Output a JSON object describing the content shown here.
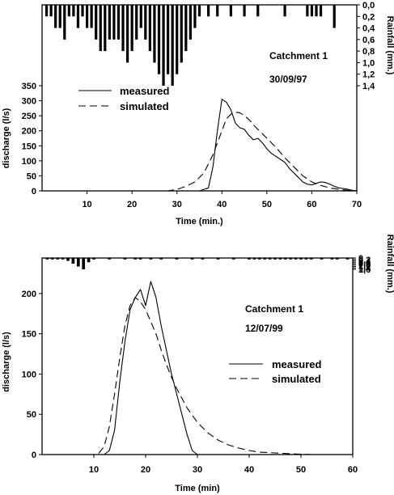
{
  "chart_data": [
    {
      "type": "line",
      "panel": "top",
      "annotation_catchment": "Catchment 1",
      "annotation_date": "30/09/97",
      "xlabel": "Time (min.)",
      "ylabel": "discharge (l/s)",
      "rain_label": "Rainfall (mm.)",
      "xlim": [
        0,
        70
      ],
      "ylim": [
        0,
        350
      ],
      "xticks": [
        10,
        20,
        30,
        40,
        50,
        60,
        70
      ],
      "yticks": [
        0,
        50,
        100,
        150,
        200,
        250,
        300,
        350
      ],
      "rain_ticks": [
        0,
        0.2,
        0.4,
        0.6,
        0.8,
        1.0,
        1.2,
        1.4
      ],
      "rain_tick_labels": [
        "0,0",
        "0,2",
        "0,4",
        "0,6",
        "0,8",
        "1,0",
        "1,2",
        "1,4"
      ],
      "rain_max": 1.4,
      "legend": {
        "placement": "top-left",
        "entries": [
          "measured",
          "simulated"
        ]
      },
      "series": [
        {
          "name": "measured",
          "style": "solid",
          "x": [
            0,
            35,
            37,
            38,
            39,
            40,
            41,
            42,
            43,
            44,
            45,
            46,
            47,
            48,
            49,
            50,
            51,
            52,
            53,
            54,
            55,
            56,
            57,
            58,
            59,
            60,
            61,
            62,
            63,
            64,
            65,
            66,
            67,
            68,
            69,
            70
          ],
          "y": [
            0,
            0,
            10,
            80,
            200,
            305,
            295,
            270,
            225,
            210,
            205,
            185,
            170,
            175,
            160,
            140,
            125,
            115,
            105,
            95,
            75,
            60,
            45,
            30,
            22,
            20,
            25,
            30,
            28,
            22,
            15,
            10,
            8,
            5,
            2,
            0
          ]
        },
        {
          "name": "simulated",
          "style": "dashed",
          "x": [
            0,
            28,
            30,
            32,
            34,
            36,
            38,
            40,
            41,
            42,
            43,
            44,
            45,
            46,
            47,
            48,
            49,
            50,
            52,
            54,
            56,
            58,
            60,
            62,
            64,
            66,
            68,
            70
          ],
          "y": [
            0,
            0,
            5,
            15,
            30,
            60,
            120,
            200,
            240,
            255,
            262,
            260,
            250,
            238,
            220,
            205,
            190,
            175,
            145,
            110,
            80,
            50,
            30,
            18,
            10,
            5,
            2,
            0
          ]
        }
      ],
      "rainfall": {
        "x": [
          1,
          2,
          3,
          4,
          5,
          6,
          7,
          8,
          9,
          10,
          11,
          12,
          13,
          14,
          15,
          16,
          17,
          18,
          19,
          20,
          21,
          22,
          23,
          24,
          25,
          26,
          27,
          28,
          29,
          30,
          31,
          32,
          33,
          34,
          35,
          37,
          39,
          42,
          45,
          48,
          54,
          59,
          60,
          61,
          62,
          65
        ],
        "values": [
          0.2,
          0.2,
          0.4,
          0.4,
          0.6,
          0.2,
          0.2,
          0.4,
          0.2,
          0.4,
          0.4,
          0.6,
          0.8,
          0.8,
          0.6,
          0.6,
          0.6,
          0.8,
          1.0,
          0.8,
          0.6,
          0.4,
          0.6,
          0.8,
          1.0,
          1.2,
          1.4,
          1.2,
          1.4,
          1.2,
          1.0,
          0.8,
          0.6,
          0.4,
          0.2,
          0.2,
          0.2,
          0.2,
          0.2,
          0.2,
          0.2,
          0.2,
          0.2,
          0.2,
          0.2,
          0.4
        ]
      }
    },
    {
      "type": "line",
      "panel": "bottom",
      "annotation_catchment": "Catchment 1",
      "annotation_date": "12/07/99",
      "xlabel": "Time (min)",
      "ylabel": "discharge (l/s)",
      "rain_label": "Rainfall (mm.)",
      "xlim": [
        0,
        60
      ],
      "ylim": [
        0,
        230
      ],
      "xticks": [
        10,
        20,
        30,
        40,
        50,
        60
      ],
      "yticks": [
        0,
        50,
        100,
        150,
        200
      ],
      "rain_ticks": [
        0,
        0.2,
        0.4,
        0.6,
        0.8,
        1.0,
        1.2,
        1.4,
        1.6
      ],
      "rain_tick_labels": [
        "0",
        "0,2",
        "0,4",
        "0,6",
        "0,8",
        "1,0",
        "1,2",
        "1,4",
        "1,6"
      ],
      "rain_max": 1.6,
      "legend": {
        "placement": "center-right",
        "entries": [
          "measured",
          "simulated"
        ]
      },
      "series": [
        {
          "name": "measured",
          "style": "solid",
          "x": [
            0,
            12,
            13,
            14,
            15,
            16,
            17,
            18,
            19,
            20,
            21,
            22,
            23,
            24,
            25,
            26,
            27,
            28,
            29,
            30,
            60
          ],
          "y": [
            0,
            0,
            5,
            30,
            90,
            140,
            180,
            195,
            205,
            185,
            215,
            195,
            160,
            130,
            100,
            75,
            50,
            25,
            5,
            0,
            0
          ]
        },
        {
          "name": "simulated",
          "style": "dashed",
          "x": [
            0,
            10,
            11,
            12,
            13,
            14,
            15,
            16,
            17,
            18,
            19,
            20,
            21,
            22,
            23,
            24,
            25,
            26,
            27,
            28,
            30,
            32,
            34,
            36,
            38,
            40,
            42,
            45,
            48,
            52,
            56,
            60
          ],
          "y": [
            0,
            0,
            2,
            10,
            35,
            75,
            120,
            160,
            185,
            195,
            190,
            180,
            165,
            150,
            130,
            112,
            96,
            82,
            70,
            58,
            40,
            27,
            18,
            12,
            8,
            5,
            3,
            2,
            1,
            0,
            0,
            0
          ]
        }
      ],
      "rainfall": {
        "x": [
          1,
          2,
          3,
          4,
          5,
          6,
          7,
          8,
          9,
          10,
          13,
          16,
          18,
          19,
          21,
          23,
          26,
          29,
          31,
          34,
          37,
          40,
          41,
          42,
          43,
          44,
          45,
          46,
          47,
          48,
          49,
          50,
          51,
          52,
          54,
          56,
          57,
          59
        ],
        "values": [
          0.2,
          0.2,
          0.2,
          0.2,
          0.4,
          0.8,
          1.2,
          1.6,
          0.6,
          0.2,
          0.2,
          0.2,
          0.2,
          0.2,
          0.2,
          0.2,
          0.2,
          0.2,
          0.2,
          0.2,
          0.2,
          0.2,
          0.2,
          0.2,
          0.2,
          0.2,
          0.2,
          0.2,
          0.2,
          0.2,
          0.2,
          0.2,
          0.2,
          0.2,
          0.2,
          0.2,
          0.2,
          0.2
        ]
      }
    }
  ]
}
